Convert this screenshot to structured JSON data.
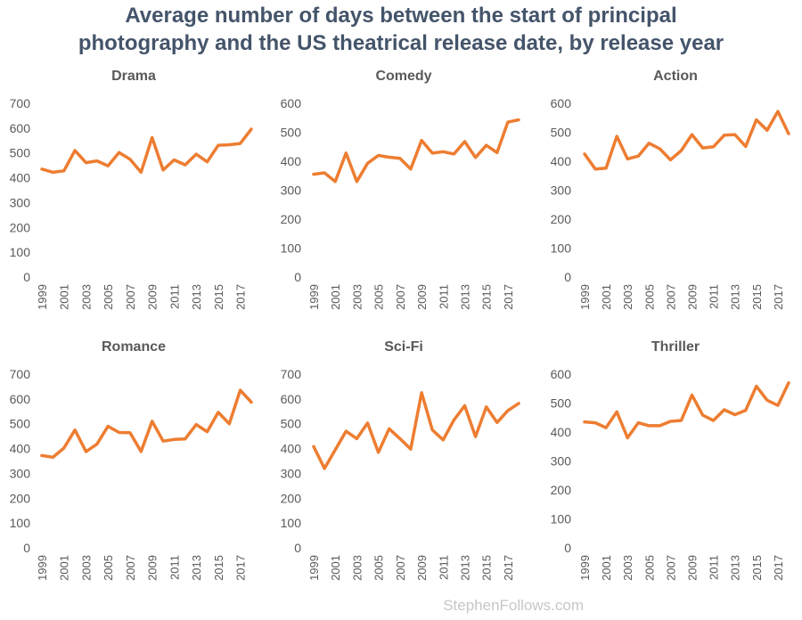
{
  "title_line1": "Average number of days between the start of principal",
  "title_line2": "photography and the US theatrical release date, by release year",
  "credit": "StephenFollows.com",
  "line_color": "#ed7d31",
  "chart_data": [
    {
      "type": "line",
      "title": "Drama",
      "ylim": [
        0,
        700
      ],
      "yticks": [
        0,
        100,
        200,
        300,
        400,
        500,
        600,
        700
      ],
      "xticks": [
        "1999",
        "2001",
        "2003",
        "2005",
        "2007",
        "2009",
        "2011",
        "2013",
        "2015",
        "2017"
      ],
      "x": [
        1999,
        2000,
        2001,
        2002,
        2003,
        2004,
        2005,
        2006,
        2007,
        2008,
        2009,
        2010,
        2011,
        2012,
        2013,
        2014,
        2015,
        2016,
        2017,
        2018
      ],
      "values": [
        435,
        422,
        428,
        510,
        461,
        468,
        448,
        502,
        475,
        422,
        562,
        431,
        472,
        452,
        495,
        464,
        531,
        533,
        538,
        596
      ]
    },
    {
      "type": "line",
      "title": "Comedy",
      "ylim": [
        0,
        600
      ],
      "yticks": [
        0,
        100,
        200,
        300,
        400,
        500,
        600
      ],
      "xticks": [
        "1999",
        "2001",
        "2003",
        "2005",
        "2007",
        "2009",
        "2011",
        "2013",
        "2015",
        "2017"
      ],
      "x": [
        1999,
        2000,
        2001,
        2002,
        2003,
        2004,
        2005,
        2006,
        2007,
        2008,
        2009,
        2010,
        2011,
        2012,
        2013,
        2014,
        2015,
        2016,
        2017,
        2018
      ],
      "values": [
        355,
        360,
        330,
        428,
        330,
        393,
        420,
        414,
        410,
        373,
        472,
        428,
        433,
        425,
        468,
        413,
        455,
        430,
        535,
        543
      ]
    },
    {
      "type": "line",
      "title": "Action",
      "ylim": [
        0,
        600
      ],
      "yticks": [
        0,
        100,
        200,
        300,
        400,
        500,
        600
      ],
      "xticks": [
        "1999",
        "2001",
        "2003",
        "2005",
        "2007",
        "2009",
        "2011",
        "2013",
        "2015",
        "2017"
      ],
      "x": [
        1999,
        2000,
        2001,
        2002,
        2003,
        2004,
        2005,
        2006,
        2007,
        2008,
        2009,
        2010,
        2011,
        2012,
        2013,
        2014,
        2015,
        2016,
        2017,
        2018
      ],
      "values": [
        425,
        373,
        376,
        486,
        408,
        418,
        462,
        443,
        405,
        437,
        492,
        446,
        450,
        490,
        492,
        451,
        543,
        507,
        572,
        495
      ]
    },
    {
      "type": "line",
      "title": "Romance",
      "ylim": [
        0,
        700
      ],
      "yticks": [
        0,
        100,
        200,
        300,
        400,
        500,
        600,
        700
      ],
      "xticks": [
        "1999",
        "2001",
        "2003",
        "2005",
        "2007",
        "2009",
        "2011",
        "2013",
        "2015",
        "2017"
      ],
      "x": [
        1999,
        2000,
        2001,
        2002,
        2003,
        2004,
        2005,
        2006,
        2007,
        2008,
        2009,
        2010,
        2011,
        2012,
        2013,
        2014,
        2015,
        2016,
        2017,
        2018
      ],
      "values": [
        372,
        365,
        402,
        475,
        388,
        418,
        490,
        465,
        464,
        388,
        510,
        430,
        437,
        439,
        497,
        468,
        546,
        500,
        635,
        587
      ]
    },
    {
      "type": "line",
      "title": "Sci-Fi",
      "ylim": [
        0,
        700
      ],
      "yticks": [
        0,
        100,
        200,
        300,
        400,
        500,
        600,
        700
      ],
      "xticks": [
        "1999",
        "2001",
        "2003",
        "2005",
        "2007",
        "2009",
        "2011",
        "2013",
        "2015",
        "2017"
      ],
      "x": [
        1999,
        2000,
        2001,
        2002,
        2003,
        2004,
        2005,
        2006,
        2007,
        2008,
        2009,
        2010,
        2011,
        2012,
        2013,
        2014,
        2015,
        2016,
        2017,
        2018
      ],
      "values": [
        408,
        320,
        395,
        470,
        440,
        503,
        385,
        480,
        440,
        398,
        625,
        475,
        435,
        515,
        573,
        448,
        568,
        505,
        553,
        582
      ]
    },
    {
      "type": "line",
      "title": "Thriller",
      "ylim": [
        0,
        600
      ],
      "yticks": [
        0,
        100,
        200,
        300,
        400,
        500,
        600
      ],
      "xticks": [
        "1999",
        "2001",
        "2003",
        "2005",
        "2007",
        "2009",
        "2011",
        "2013",
        "2015",
        "2017"
      ],
      "x": [
        1999,
        2000,
        2001,
        2002,
        2003,
        2004,
        2005,
        2006,
        2007,
        2008,
        2009,
        2010,
        2011,
        2012,
        2013,
        2014,
        2015,
        2016,
        2017,
        2018
      ],
      "values": [
        435,
        432,
        415,
        470,
        380,
        432,
        422,
        422,
        437,
        440,
        528,
        458,
        440,
        477,
        460,
        475,
        558,
        510,
        492,
        570
      ]
    }
  ]
}
